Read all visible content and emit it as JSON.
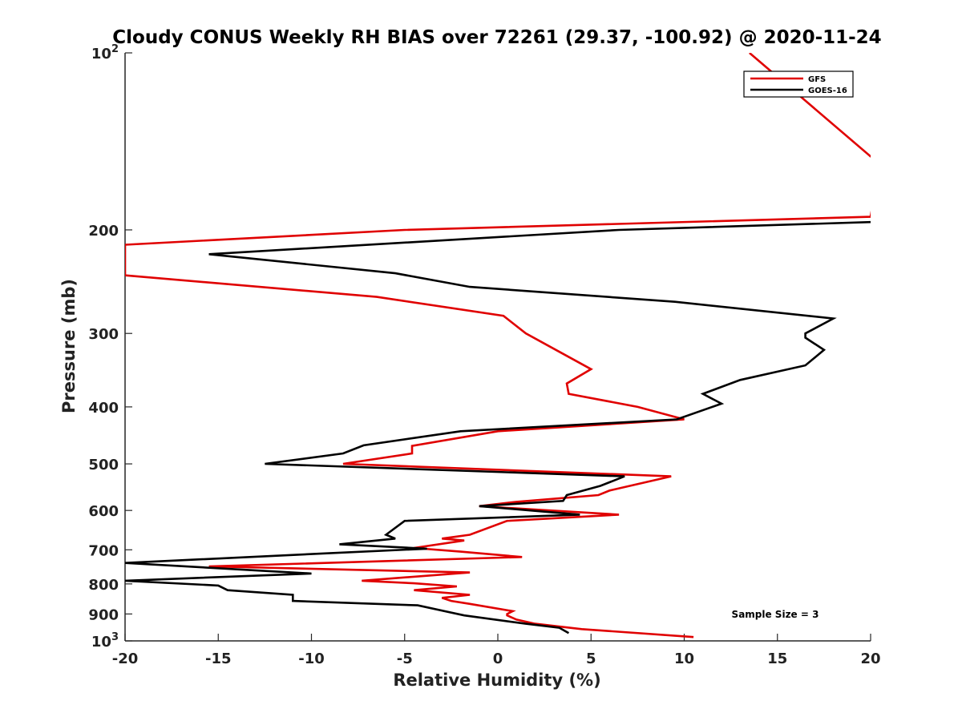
{
  "chart_data": {
    "type": "line",
    "title": "Cloudy CONUS Weekly RH BIAS over 72261 (29.37, -100.92) @ 2020-11-24",
    "xlabel": "Relative Humidity (%)",
    "ylabel": "Pressure (mb)",
    "xlim": [
      -20,
      20
    ],
    "ylim": [
      100,
      1000
    ],
    "y_scale": "log",
    "y_reversed": true,
    "grid": false,
    "legend_position": "top-right",
    "x_ticks": [
      -20,
      -15,
      -10,
      -5,
      0,
      5,
      10,
      15,
      20
    ],
    "x_tick_labels": [
      "-20",
      "-15",
      "-10",
      "-5",
      "0",
      "5",
      "10",
      "15",
      "20"
    ],
    "y_ticks": [
      100,
      200,
      300,
      400,
      500,
      600,
      700,
      800,
      900,
      1000
    ],
    "y_tick_labels": [
      {
        "base": "10",
        "exp": "2"
      },
      {
        "base": "200",
        "exp": ""
      },
      {
        "base": "300",
        "exp": ""
      },
      {
        "base": "400",
        "exp": ""
      },
      {
        "base": "500",
        "exp": ""
      },
      {
        "base": "600",
        "exp": ""
      },
      {
        "base": "700",
        "exp": ""
      },
      {
        "base": "800",
        "exp": ""
      },
      {
        "base": "900",
        "exp": ""
      },
      {
        "base": "10",
        "exp": "3"
      }
    ],
    "annotation": "Sample Size = 3",
    "series": [
      {
        "name": "GFS",
        "color": "#e00000",
        "points": [
          [
            13.5,
            100
          ],
          [
            20.0,
            150
          ],
          [
            20.5,
            153
          ],
          [
            20.0,
            190
          ],
          [
            -5.0,
            200
          ],
          [
            -20.0,
            212
          ],
          [
            -20.0,
            239
          ],
          [
            -6.5,
            260
          ],
          [
            0.3,
            280
          ],
          [
            1.5,
            300
          ],
          [
            3.5,
            325
          ],
          [
            5.0,
            345
          ],
          [
            3.7,
            365
          ],
          [
            3.8,
            380
          ],
          [
            7.5,
            400
          ],
          [
            10.0,
            420
          ],
          [
            0.0,
            440
          ],
          [
            -4.6,
            466
          ],
          [
            -4.6,
            480
          ],
          [
            -8.3,
            500
          ],
          [
            9.3,
            525
          ],
          [
            6.0,
            555
          ],
          [
            5.4,
            565
          ],
          [
            1.0,
            580
          ],
          [
            -1.0,
            590
          ],
          [
            6.5,
            610
          ],
          [
            0.5,
            625
          ],
          [
            -1.5,
            660
          ],
          [
            -3.0,
            670
          ],
          [
            -1.8,
            675
          ],
          [
            -4.5,
            695
          ],
          [
            -2.0,
            705
          ],
          [
            1.3,
            720
          ],
          [
            -15.5,
            747
          ],
          [
            -1.5,
            765
          ],
          [
            -7.3,
            790
          ],
          [
            -4.5,
            798
          ],
          [
            -2.2,
            808
          ],
          [
            -4.5,
            820
          ],
          [
            -1.5,
            835
          ],
          [
            -3.0,
            845
          ],
          [
            -2.5,
            855
          ],
          [
            -1.5,
            865
          ],
          [
            0.8,
            890
          ],
          [
            0.5,
            900
          ],
          [
            0.5,
            905
          ],
          [
            1.0,
            920
          ],
          [
            2.0,
            935
          ],
          [
            4.5,
            955
          ],
          [
            10.5,
            985
          ]
        ]
      },
      {
        "name": "GOES-16",
        "color": "#000000",
        "points": [
          [
            20.0,
            194
          ],
          [
            6.5,
            200
          ],
          [
            -15.5,
            220
          ],
          [
            -5.5,
            237
          ],
          [
            -1.5,
            250
          ],
          [
            9.5,
            265
          ],
          [
            18.0,
            283
          ],
          [
            16.5,
            300
          ],
          [
            16.5,
            305
          ],
          [
            17.5,
            320
          ],
          [
            16.5,
            340
          ],
          [
            13.0,
            360
          ],
          [
            11.0,
            380
          ],
          [
            12.0,
            395
          ],
          [
            9.6,
            420
          ],
          [
            -2.0,
            440
          ],
          [
            -7.2,
            465
          ],
          [
            -8.3,
            480
          ],
          [
            -12.5,
            500
          ],
          [
            6.8,
            525
          ],
          [
            5.5,
            545
          ],
          [
            3.7,
            565
          ],
          [
            3.5,
            578
          ],
          [
            -1.0,
            590
          ],
          [
            4.4,
            610
          ],
          [
            -5.0,
            625
          ],
          [
            -6.0,
            660
          ],
          [
            -5.5,
            670
          ],
          [
            -8.5,
            685
          ],
          [
            -3.8,
            697
          ],
          [
            -9.3,
            710
          ],
          [
            -20.0,
            737
          ],
          [
            -10.0,
            768
          ],
          [
            -20.0,
            790
          ],
          [
            -15.0,
            805
          ],
          [
            -14.5,
            820
          ],
          [
            -11.0,
            835
          ],
          [
            -11.0,
            855
          ],
          [
            -4.3,
            870
          ],
          [
            -1.8,
            905
          ],
          [
            1.5,
            935
          ],
          [
            3.3,
            950
          ],
          [
            3.8,
            970
          ]
        ]
      }
    ]
  }
}
